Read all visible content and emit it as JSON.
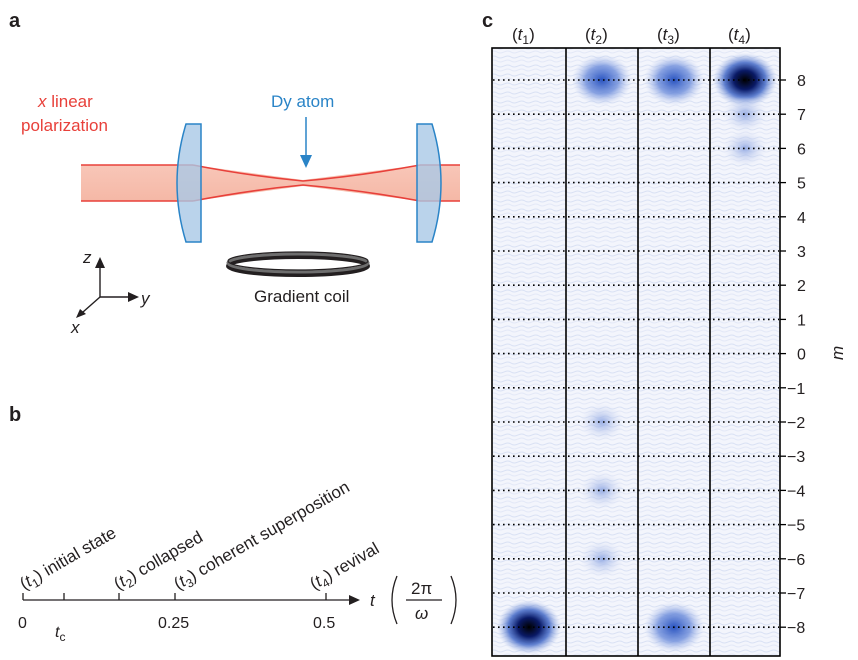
{
  "panels": {
    "a": "a",
    "b": "b",
    "c": "c"
  },
  "panel_a": {
    "pol_axis": "x",
    "pol_word": " linear",
    "pol_line2": "polarization",
    "atom_label": "Dy atom",
    "coil_label": "Gradient coil",
    "axes": {
      "z": "z",
      "y": "y",
      "x": "x"
    }
  },
  "panel_b": {
    "events": [
      {
        "idx": "1",
        "text": " initial state"
      },
      {
        "idx": "2",
        "text": " collapsed"
      },
      {
        "idx": "3",
        "text": " coherent superposition"
      },
      {
        "idx": "4",
        "text": " revival"
      }
    ],
    "ticks": [
      "0",
      "0.25",
      "0.5"
    ],
    "tc_main": "t",
    "tc_sub": "c",
    "axis_var": "t",
    "unit_num": "2π",
    "unit_den": "ω"
  },
  "panel_c": {
    "columns": [
      {
        "var": "t",
        "idx": "1"
      },
      {
        "var": "t",
        "idx": "2"
      },
      {
        "var": "t",
        "idx": "3"
      },
      {
        "var": "t",
        "idx": "4"
      }
    ],
    "m_ticks": [
      "8",
      "7",
      "6",
      "5",
      "4",
      "3",
      "2",
      "1",
      "0",
      "−1",
      "−2",
      "−3",
      "−4",
      "−5",
      "−6",
      "−7",
      "−8"
    ],
    "ylabel": "m",
    "spots": [
      {
        "col": 0,
        "m": -8,
        "strength": 1.0
      },
      {
        "col": 1,
        "m": 8,
        "strength": 0.45
      },
      {
        "col": 1,
        "m": -2,
        "strength": 0.12
      },
      {
        "col": 1,
        "m": -4,
        "strength": 0.15
      },
      {
        "col": 1,
        "m": -6,
        "strength": 0.12
      },
      {
        "col": 2,
        "m": 8,
        "strength": 0.55
      },
      {
        "col": 2,
        "m": -8,
        "strength": 0.55
      },
      {
        "col": 3,
        "m": 8,
        "strength": 1.0
      },
      {
        "col": 3,
        "m": 7,
        "strength": 0.15
      },
      {
        "col": 3,
        "m": 6,
        "strength": 0.12
      }
    ],
    "colors": {
      "spot": "#0a1a66",
      "bg": "#eef1fa",
      "dots": "#000000"
    }
  }
}
